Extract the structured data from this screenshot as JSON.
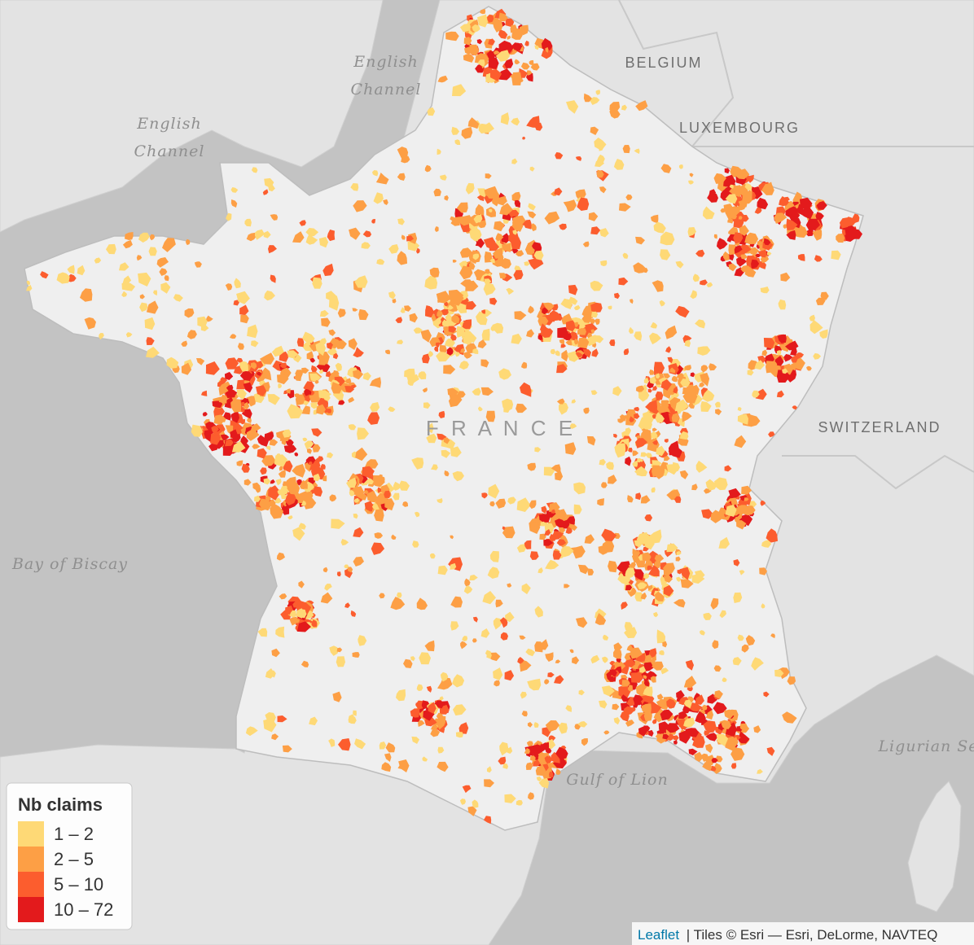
{
  "map": {
    "places": [
      {
        "lines": [
          "English",
          "Channel"
        ],
        "style": "sea"
      },
      {
        "lines": [
          "English",
          "Channel"
        ],
        "style": "sea"
      },
      {
        "lines": [
          "BELGIUM"
        ],
        "style": "country"
      },
      {
        "lines": [
          "LUXEMBOURG"
        ],
        "style": "country"
      },
      {
        "lines": [
          "SWITZERLAND"
        ],
        "style": "country"
      },
      {
        "lines": [
          "F R A N C E"
        ],
        "style": "main"
      },
      {
        "lines": [
          "Bay of Biscay"
        ],
        "style": "sea"
      },
      {
        "lines": [
          "Gulf of Lion"
        ],
        "style": "sea"
      },
      {
        "lines": [
          "Ligurian Se"
        ],
        "style": "sea"
      }
    ],
    "legend": {
      "title": "Nb claims",
      "items": [
        {
          "label": "1 – 2",
          "color": "#fed976"
        },
        {
          "label": "2 – 5",
          "color": "#fd9f45"
        },
        {
          "label": "5 – 10",
          "color": "#fc5d2e"
        },
        {
          "label": "10 – 72",
          "color": "#e31a1c"
        }
      ]
    },
    "attribution": {
      "link": "Leaflet",
      "text": "| Tiles © Esri — Esri, DeLorme, NAVTEQ"
    }
  }
}
